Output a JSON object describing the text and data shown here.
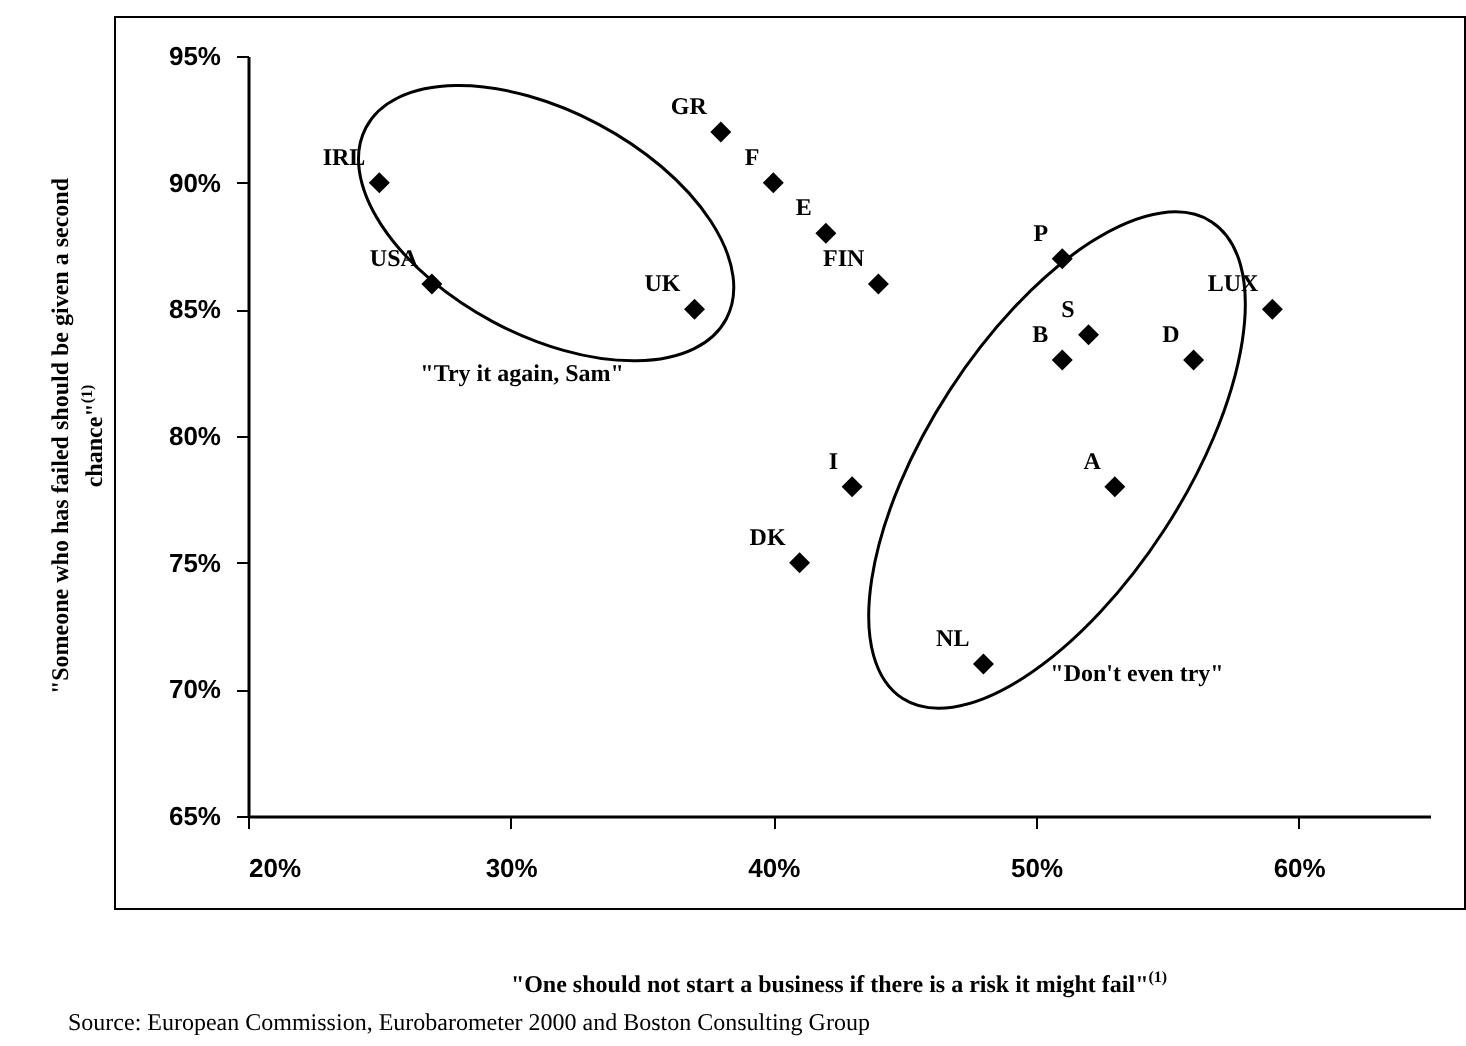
{
  "chart_data": {
    "type": "scatter",
    "xlabel": "\"One should not start a business if there is a risk it might fail\"$^{(1)}$",
    "ylabel": "\"Someone who has failed should be given a second chance\"$^{(1)}$",
    "x": [
      25,
      27,
      37,
      38,
      40,
      42,
      44,
      51,
      52,
      51,
      56,
      59,
      43,
      53,
      41,
      48
    ],
    "values": [
      90,
      86,
      85,
      92,
      90,
      88,
      86,
      87,
      84,
      83,
      83,
      85,
      78,
      78,
      75,
      71
    ],
    "color": "#000000",
    "marker": "diamond",
    "xlim": [
      20,
      65
    ],
    "xticks": [
      {
        "value": 20,
        "label": "20%"
      },
      {
        "value": 30,
        "label": "30%"
      },
      {
        "value": 40,
        "label": "40%"
      },
      {
        "value": 50,
        "label": "50%"
      },
      {
        "value": 60,
        "label": "60%"
      }
    ],
    "ylim": [
      65,
      95
    ],
    "yticks": [
      {
        "value": 65,
        "label": "65%"
      },
      {
        "value": 70,
        "label": "70%"
      },
      {
        "value": 75,
        "label": "75%"
      },
      {
        "value": 80,
        "label": "80%"
      },
      {
        "value": 85,
        "label": "85%"
      },
      {
        "value": 90,
        "label": "90%"
      },
      {
        "value": 95,
        "label": "95%"
      }
    ],
    "grid": false,
    "annotations": [
      {
        "text": "IRL",
        "x": 25,
        "y": 90
      },
      {
        "text": "USA",
        "x": 27,
        "y": 86
      },
      {
        "text": "UK",
        "x": 37,
        "y": 85
      },
      {
        "text": "GR",
        "x": 38,
        "y": 92
      },
      {
        "text": "F",
        "x": 40,
        "y": 90
      },
      {
        "text": "E",
        "x": 42,
        "y": 88
      },
      {
        "text": "FIN",
        "x": 44,
        "y": 86
      },
      {
        "text": "P",
        "x": 51,
        "y": 87
      },
      {
        "text": "S",
        "x": 52,
        "y": 84
      },
      {
        "text": "B",
        "x": 51,
        "y": 83
      },
      {
        "text": "D",
        "x": 56,
        "y": 83
      },
      {
        "text": "LUX",
        "x": 59,
        "y": 85
      },
      {
        "text": "I",
        "x": 43,
        "y": 78
      },
      {
        "text": "A",
        "x": 53,
        "y": 78
      },
      {
        "text": "DK",
        "x": 41,
        "y": 75
      },
      {
        "text": "NL",
        "x": 48,
        "y": 71
      },
      "\"Try it again, Sam\"",
      "\"Don't even try\"",
      "Source: European Commission, Eurobarometer 2000 and Boston Consulting Group"
    ]
  }
}
